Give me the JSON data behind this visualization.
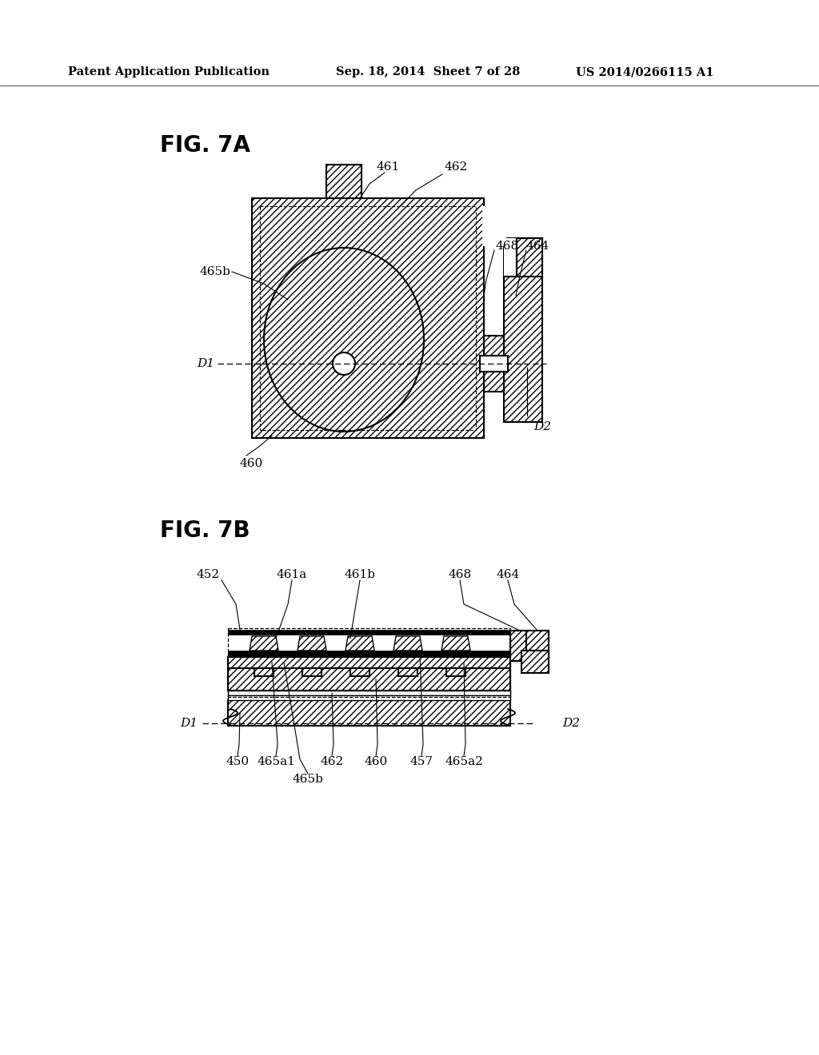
{
  "bg_color": "#ffffff",
  "header_left": "Patent Application Publication",
  "header_center": "Sep. 18, 2014  Sheet 7 of 28",
  "header_right": "US 2014/0266115 A1",
  "fig7a_label": "FIG. 7A",
  "fig7b_label": "FIG. 7B"
}
